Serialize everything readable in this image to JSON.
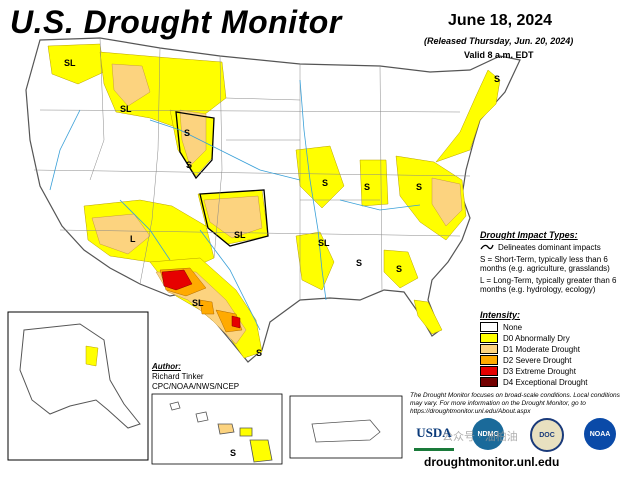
{
  "header": {
    "title": "U.S. Drought Monitor",
    "date": "June 18, 2024",
    "released": "(Released Thursday, Jun. 20, 2024)",
    "valid": "Valid 8 a.m. EDT"
  },
  "impact_types": {
    "heading": "Drought Impact Types:",
    "delineates": "Delineates dominant impacts",
    "short_term": "S = Short-Term, typically less than 6 months (e.g. agriculture, grasslands)",
    "long_term": "L = Long-Term, typically greater than 6 months (e.g. hydrology, ecology)"
  },
  "intensity": {
    "heading": "Intensity:",
    "levels": [
      {
        "label": "None",
        "color": "#ffffff"
      },
      {
        "label": "D0 Abnormally Dry",
        "color": "#ffff00"
      },
      {
        "label": "D1 Moderate Drought",
        "color": "#fcd37f"
      },
      {
        "label": "D2 Severe Drought",
        "color": "#ffaa00"
      },
      {
        "label": "D3 Extreme Drought",
        "color": "#e60000"
      },
      {
        "label": "D4 Exceptional Drought",
        "color": "#730000"
      }
    ]
  },
  "author": {
    "heading": "Author:",
    "name": "Richard Tinker",
    "org": "CPC/NOAA/NWS/NCEP"
  },
  "note": "The Drought Monitor focuses on broad-scale conditions. Local conditions may vary. For more information on the Drought Monitor, go to https://droughtmonitor.unl.edu/About.aspx",
  "url": "droughtmonitor.unl.edu",
  "logos": {
    "usda": "USDA",
    "ndmc": "NDMC",
    "doc": "DOC",
    "noaa": "NOAA",
    "watermark": "公众号 · 油柏油"
  },
  "map_labels": {
    "sl": "SL",
    "s": "S",
    "l": "L"
  }
}
